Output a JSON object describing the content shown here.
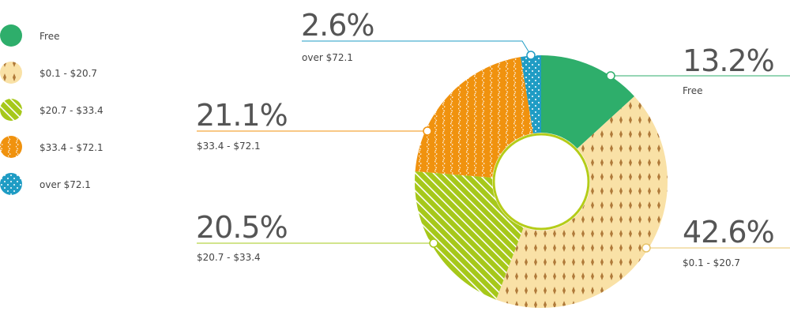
{
  "chart_data": {
    "type": "pie",
    "variant": "donut",
    "legend_position": "left",
    "slices": [
      {
        "label": "Free",
        "value": 13.2,
        "value_label": "13.2%",
        "color": "#2eae6b",
        "pattern": "solid"
      },
      {
        "label": "$0.1 - $20.7",
        "value": 42.6,
        "value_label": "42.6%",
        "color": "#f9e1a6",
        "pattern": "diamonds",
        "pattern_color": "#b07a3a"
      },
      {
        "label": "$20.7 - $33.4",
        "value": 20.5,
        "value_label": "20.5%",
        "color": "#a6c81a",
        "pattern": "diagonal-stripes",
        "pattern_color": "#ffffff"
      },
      {
        "label": "$33.4 - $72.1",
        "value": 21.1,
        "value_label": "21.1%",
        "color": "#f0920e",
        "pattern": "zigzag",
        "pattern_color": "#ffffff"
      },
      {
        "label": "over $72.1",
        "value": 2.6,
        "value_label": "2.6%",
        "color": "#1f9cc4",
        "pattern": "dots",
        "pattern_color": "#ffffff"
      }
    ]
  }
}
